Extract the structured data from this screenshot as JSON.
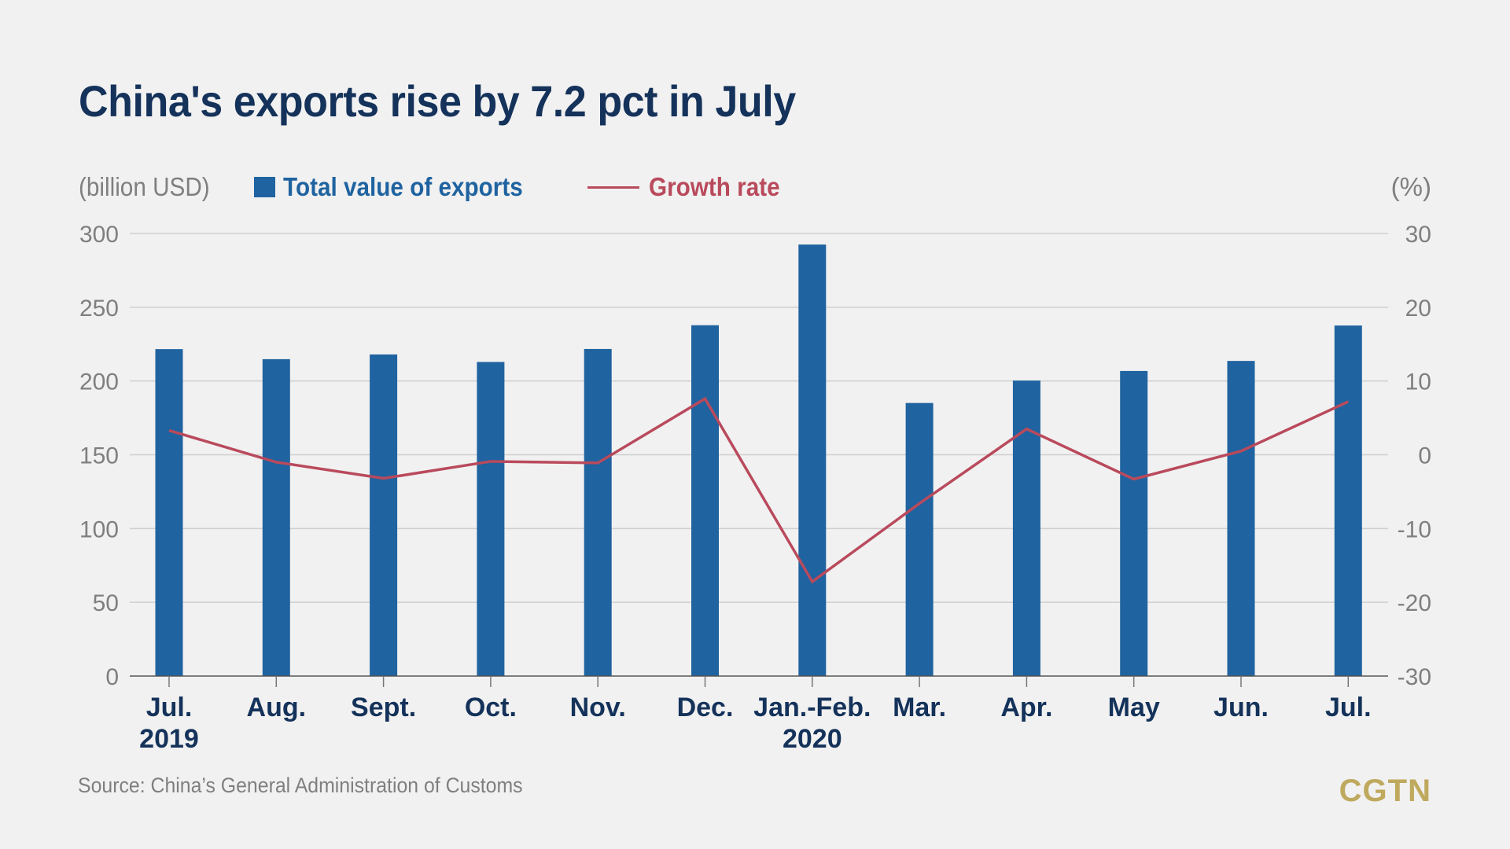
{
  "title": "China's exports rise by 7.2 pct in July",
  "legend": {
    "left_unit": "(billion USD)",
    "right_unit": "(%)",
    "bar_label": "Total value of exports",
    "line_label": "Growth rate"
  },
  "source": "Source: China’s General Administration of Customs",
  "logo": "CGTN",
  "colors": {
    "bar": "#1f63a0",
    "line": "#b94a5c",
    "title": "#14325a",
    "axis_text": "#7f7f7f",
    "logo": "#bfa95e",
    "background": "#f1f1f1"
  },
  "chart_data": {
    "type": "bar",
    "title": "China's exports rise by 7.2 pct in July",
    "categories": [
      [
        "Jul.",
        "2019"
      ],
      [
        "Aug."
      ],
      [
        "Sept."
      ],
      [
        "Oct."
      ],
      [
        "Nov."
      ],
      [
        "Dec."
      ],
      [
        "Jan.-Feb.",
        "2020"
      ],
      [
        "Mar."
      ],
      [
        "Apr."
      ],
      [
        "May"
      ],
      [
        "Jun."
      ],
      [
        "Jul."
      ]
    ],
    "series": [
      {
        "name": "Total value of exports",
        "type": "bar",
        "axis": "left",
        "unit": "billion USD",
        "values": [
          221.6,
          214.8,
          218.0,
          212.9,
          221.7,
          237.8,
          292.5,
          185.1,
          200.3,
          206.8,
          213.6,
          237.6
        ]
      },
      {
        "name": "Growth rate",
        "type": "line",
        "axis": "right",
        "unit": "%",
        "values": [
          3.3,
          -1.0,
          -3.2,
          -0.9,
          -1.1,
          7.6,
          -17.2,
          -6.6,
          3.5,
          -3.3,
          0.5,
          7.2
        ]
      }
    ],
    "left_axis": {
      "label": "(billion USD)",
      "range": [
        0,
        300
      ],
      "ticks": [
        0,
        50,
        100,
        150,
        200,
        250,
        300
      ]
    },
    "right_axis": {
      "label": "(%)",
      "range": [
        -30,
        30
      ],
      "ticks": [
        -30,
        -20,
        -10,
        0,
        10,
        20,
        30
      ]
    },
    "grid": true,
    "legend_position": "top-left"
  }
}
